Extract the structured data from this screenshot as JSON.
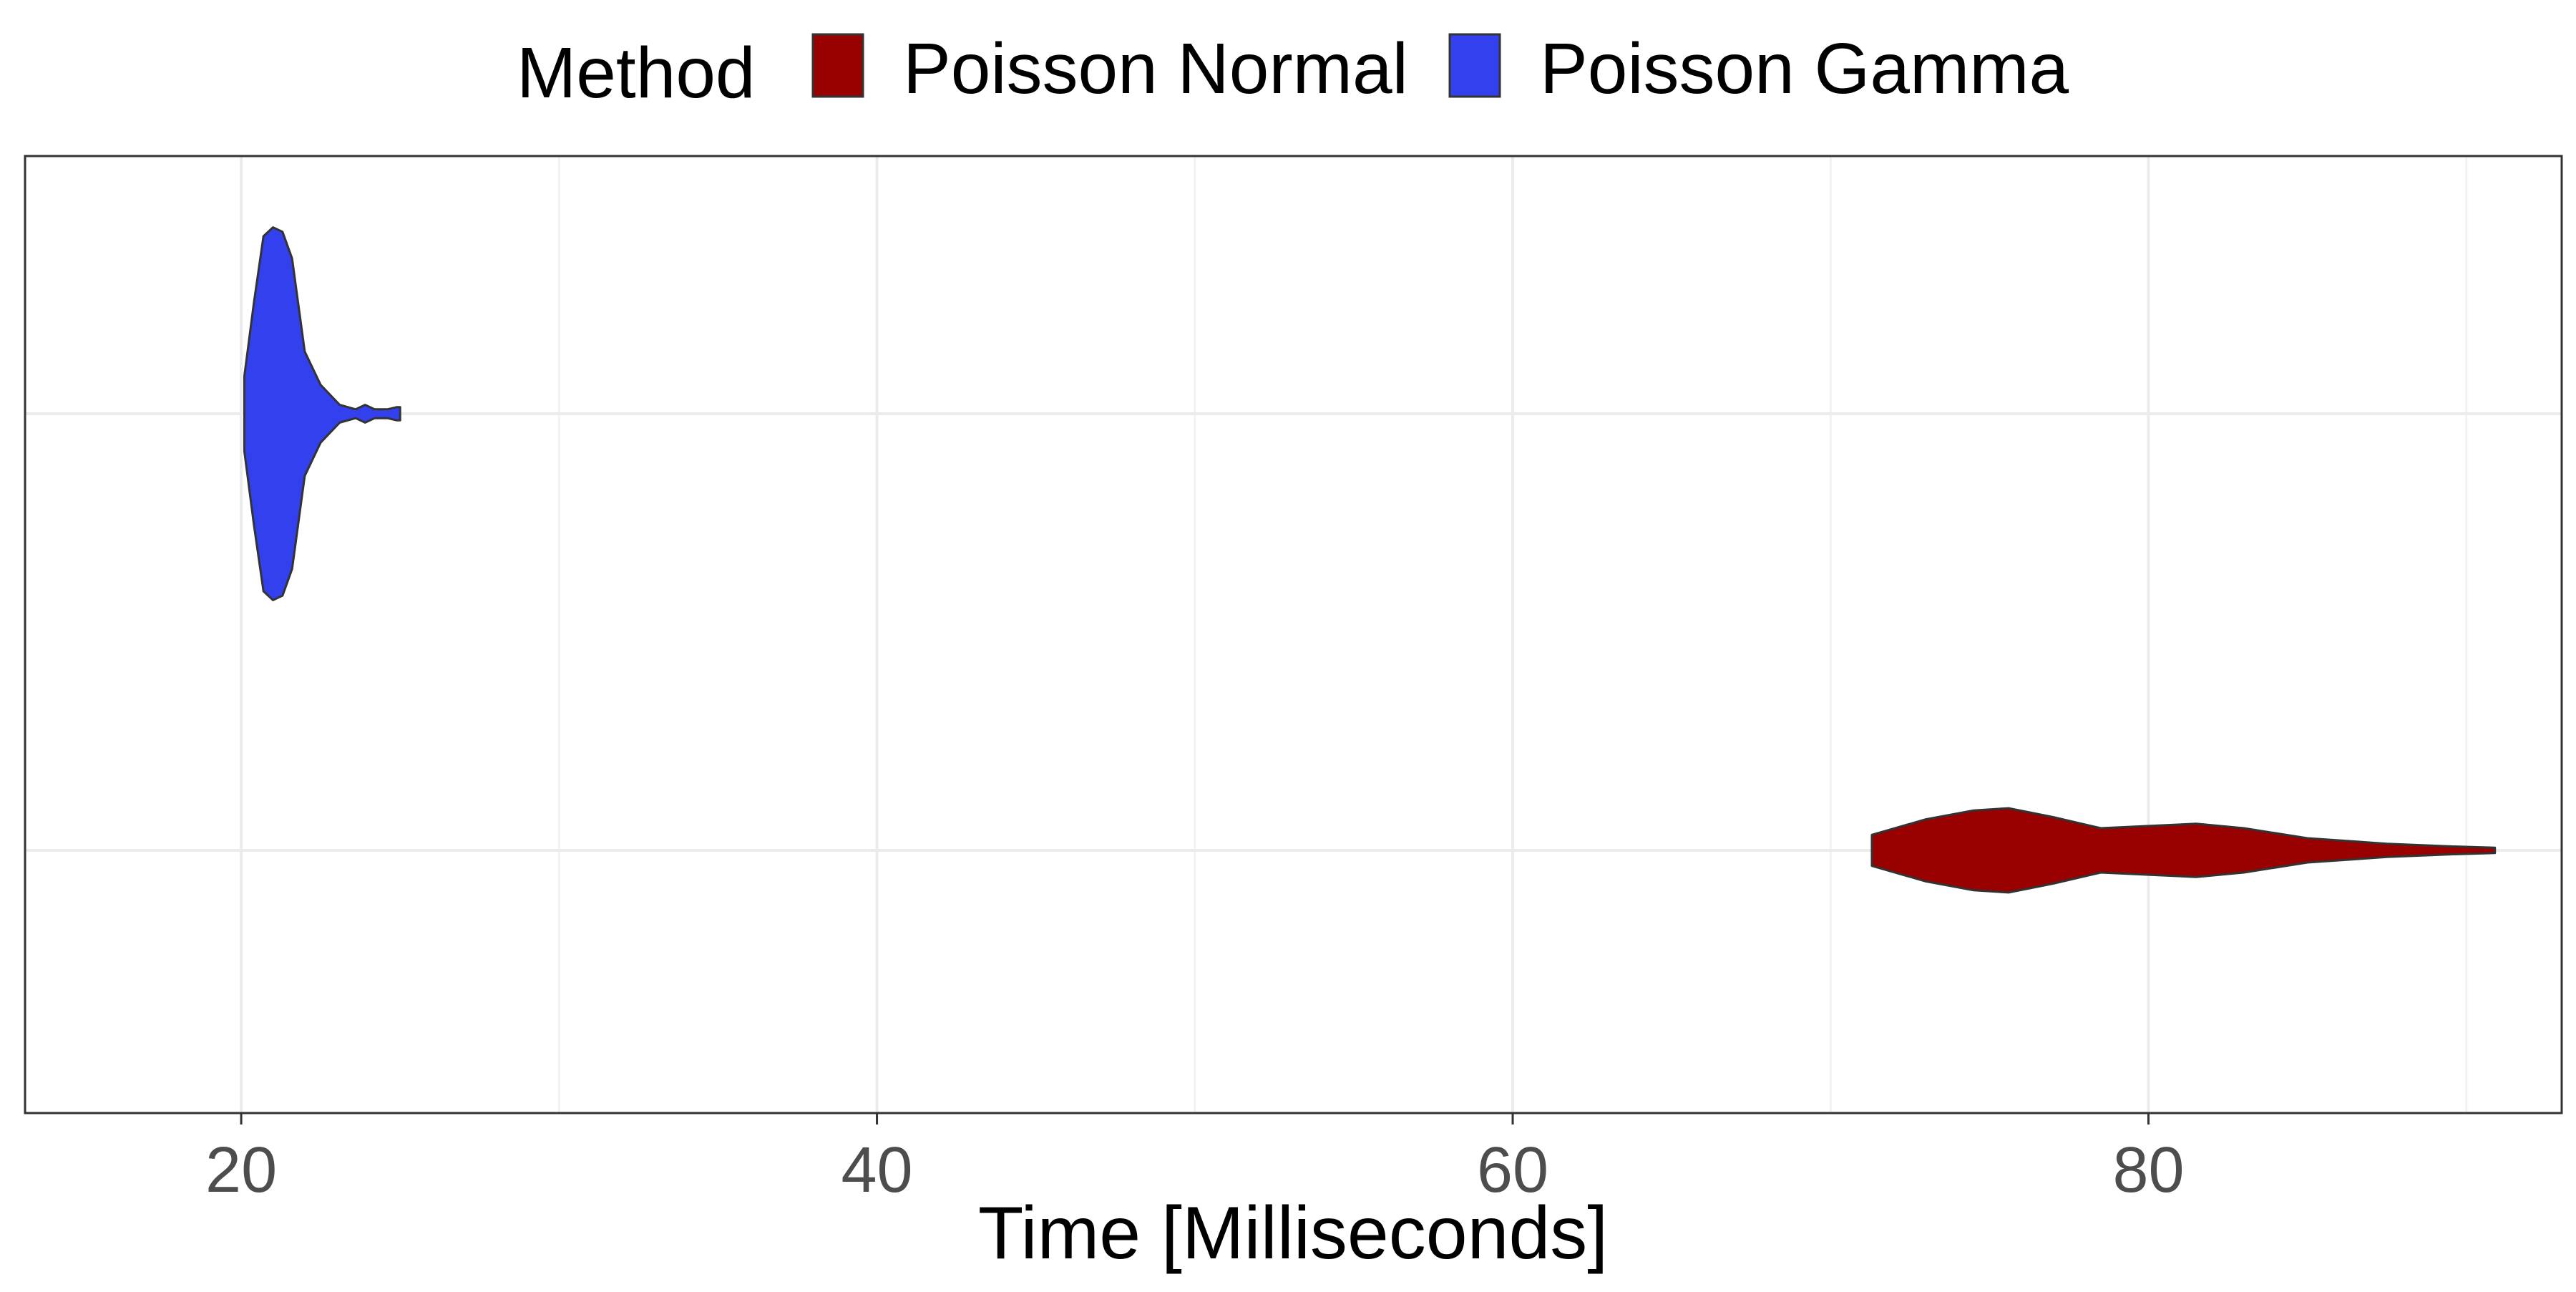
{
  "chart_data": {
    "type": "violin",
    "orientation": "horizontal",
    "title": "",
    "xlabel": "Time [Milliseconds]",
    "ylabel": "",
    "xlim": [
      13.2,
      93.0
    ],
    "x_ticks": [
      20,
      40,
      60,
      80
    ],
    "x_minor_gridlines": [
      30,
      50,
      70,
      90
    ],
    "grid": true,
    "legend": {
      "title": "Method",
      "placement": "top",
      "entries": [
        {
          "label": "Poisson Normal",
          "color": "#990000"
        },
        {
          "label": "Poisson Gamma",
          "color": "#3340ee"
        }
      ]
    },
    "series": [
      {
        "name": "Poisson Normal",
        "color": "#990000",
        "category_index": 0,
        "density": [
          {
            "x": 71.3,
            "w": 0.07
          },
          {
            "x": 73.0,
            "w": 0.14
          },
          {
            "x": 74.5,
            "w": 0.18
          },
          {
            "x": 75.6,
            "w": 0.19
          },
          {
            "x": 77.0,
            "w": 0.15
          },
          {
            "x": 78.5,
            "w": 0.1
          },
          {
            "x": 80.0,
            "w": 0.11
          },
          {
            "x": 81.5,
            "w": 0.12
          },
          {
            "x": 83.0,
            "w": 0.1
          },
          {
            "x": 85.0,
            "w": 0.055
          },
          {
            "x": 87.5,
            "w": 0.03
          },
          {
            "x": 89.5,
            "w": 0.018
          },
          {
            "x": 90.9,
            "w": 0.012
          }
        ]
      },
      {
        "name": "Poisson Gamma",
        "color": "#3340ee",
        "category_index": 1,
        "density": [
          {
            "x": 20.1,
            "w": 0.17
          },
          {
            "x": 20.4,
            "w": 0.5
          },
          {
            "x": 20.7,
            "w": 0.8
          },
          {
            "x": 21.0,
            "w": 0.84
          },
          {
            "x": 21.3,
            "w": 0.82
          },
          {
            "x": 21.6,
            "w": 0.7
          },
          {
            "x": 22.0,
            "w": 0.28
          },
          {
            "x": 22.5,
            "w": 0.13
          },
          {
            "x": 23.1,
            "w": 0.04
          },
          {
            "x": 23.6,
            "w": 0.02
          },
          {
            "x": 23.9,
            "w": 0.04
          },
          {
            "x": 24.2,
            "w": 0.02
          },
          {
            "x": 24.6,
            "w": 0.02
          },
          {
            "x": 24.9,
            "w": 0.03
          },
          {
            "x": 25.0,
            "w": 0.03
          }
        ]
      }
    ]
  }
}
